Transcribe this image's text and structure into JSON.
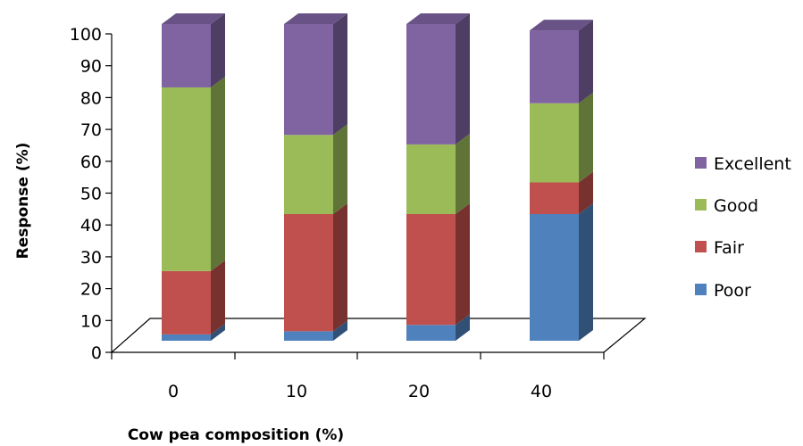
{
  "chart_data": {
    "type": "bar",
    "stacked": true,
    "three_d": true,
    "title": "",
    "xlabel": "Cow pea composition (%)",
    "ylabel": "Response (%)",
    "ylim": [
      0,
      100
    ],
    "y_ticks": [
      "0",
      "10",
      "20",
      "30",
      "40",
      "50",
      "60",
      "70",
      "80",
      "90",
      "100"
    ],
    "categories": [
      "0",
      "10",
      "20",
      "40"
    ],
    "series": [
      {
        "name": "Poor",
        "color": "#4F81BD",
        "values": [
          2,
          3,
          5,
          40
        ]
      },
      {
        "name": "Fair",
        "color": "#C0504D",
        "values": [
          20,
          37,
          35,
          10
        ]
      },
      {
        "name": "Good",
        "color": "#9BBB59",
        "values": [
          58,
          25,
          22,
          25
        ]
      },
      {
        "name": "Excellent",
        "color": "#8064A2",
        "values": [
          20,
          35,
          38,
          23
        ]
      }
    ],
    "legend": {
      "position": "right",
      "order": [
        "Excellent",
        "Good",
        "Fair",
        "Poor"
      ]
    },
    "grid": false
  }
}
